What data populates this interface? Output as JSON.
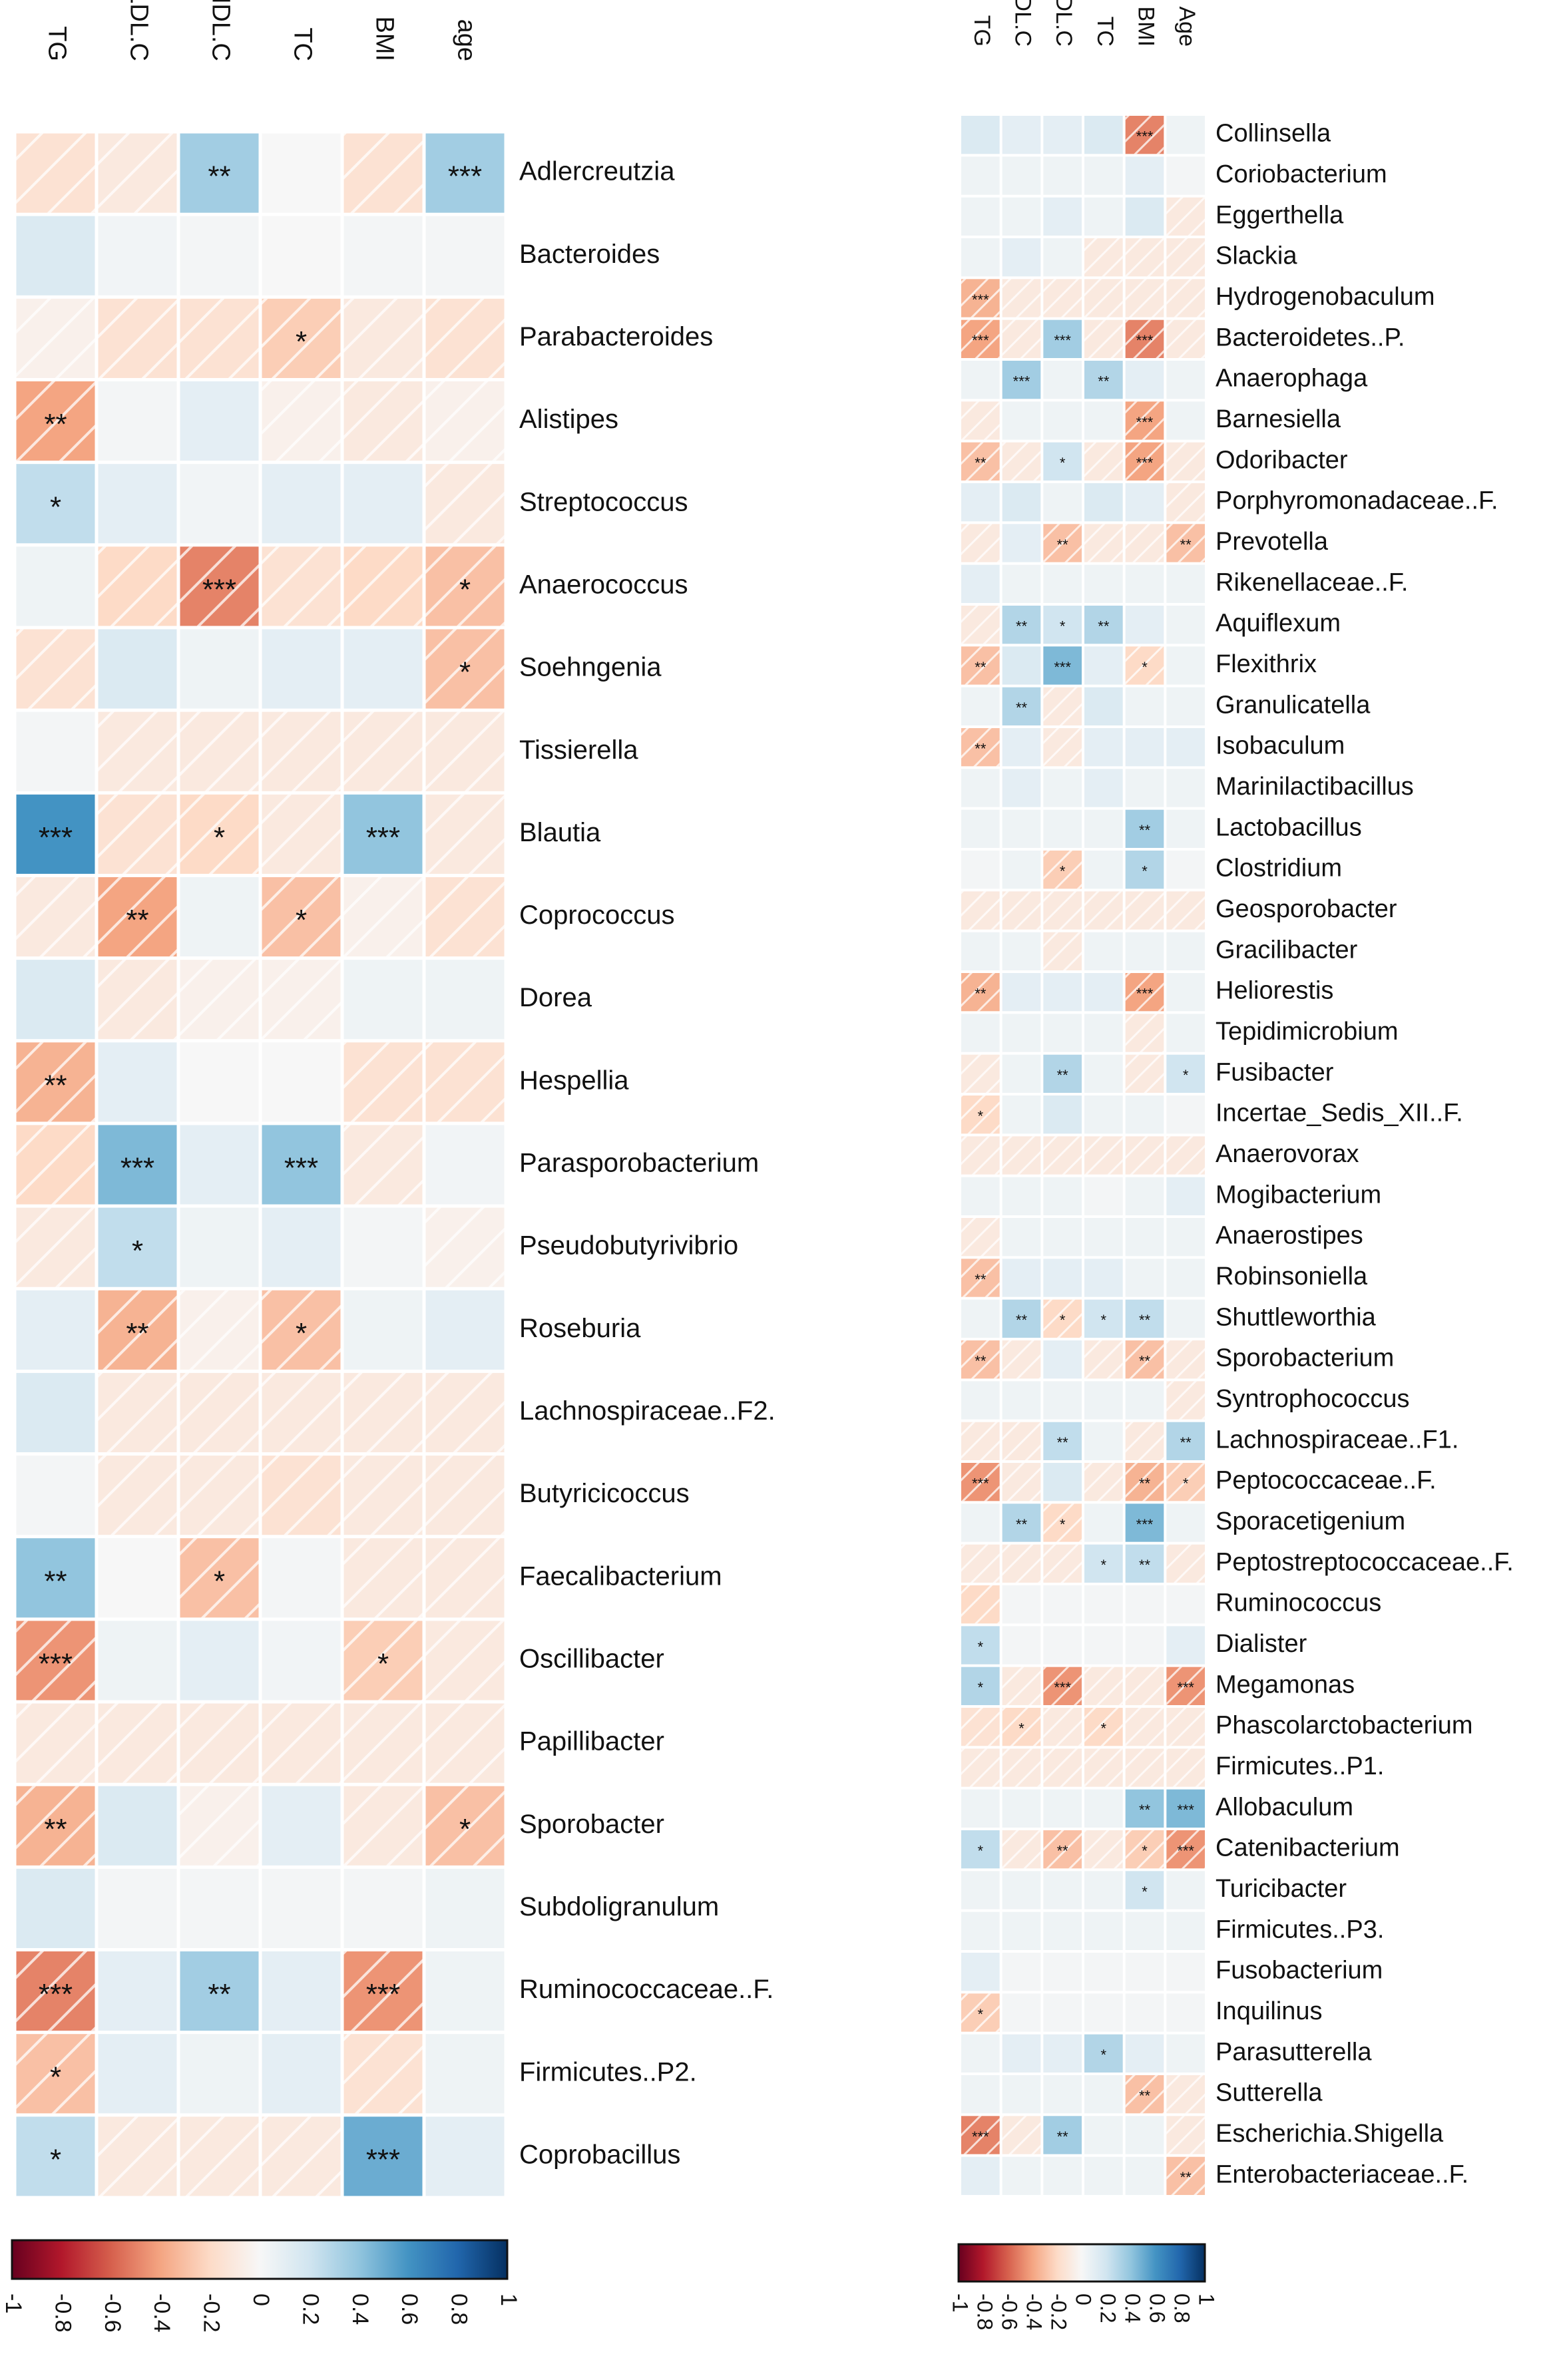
{
  "chart_data": [
    {
      "type": "heatmap",
      "columns": [
        "TG",
        "LDL.C",
        "HDL.C",
        "TC",
        "BMI",
        "age"
      ],
      "rows": [
        "Adlercreutzia",
        "Bacteroides",
        "Parabacteroides",
        "Alistipes",
        "Streptococcus",
        "Anaerococcus",
        "Soehngenia",
        "Tissierella",
        "Blautia",
        "Coprococcus",
        "Dorea",
        "Hespellia",
        "Parasporobacterium",
        "Pseudobutyrivibrio",
        "Roseburia",
        "Lachnospiraceae..F2.",
        "Butyricicoccus",
        "Faecalibacterium",
        "Oscillibacter",
        "Papillibacter",
        "Sporobacter",
        "Subdoligranulum",
        "Ruminococcaceae..F.",
        "Firmicutes..P2.",
        "Coprobacillus"
      ],
      "values": [
        [
          -0.15,
          -0.1,
          0.35,
          0,
          -0.15,
          0.35
        ],
        [
          0.15,
          0.03,
          0.02,
          0,
          0.02,
          0.02
        ],
        [
          -0.05,
          -0.15,
          -0.15,
          -0.25,
          -0.1,
          -0.15
        ],
        [
          -0.4,
          0.02,
          0.1,
          -0.05,
          -0.1,
          -0.05
        ],
        [
          0.25,
          0.1,
          0.03,
          0.1,
          0.1,
          -0.1
        ],
        [
          0.05,
          -0.2,
          -0.5,
          -0.15,
          -0.2,
          -0.3
        ],
        [
          -0.15,
          0.15,
          0.05,
          0.1,
          0.1,
          -0.3
        ],
        [
          0.02,
          -0.1,
          -0.1,
          -0.1,
          -0.1,
          -0.1
        ],
        [
          0.6,
          -0.15,
          -0.2,
          -0.1,
          0.4,
          -0.1
        ],
        [
          -0.1,
          -0.4,
          0.05,
          -0.3,
          -0.05,
          -0.15
        ],
        [
          0.15,
          -0.1,
          -0.05,
          -0.05,
          0.05,
          0.05
        ],
        [
          -0.35,
          0.1,
          0,
          0,
          -0.15,
          -0.15
        ],
        [
          -0.2,
          0.45,
          0.1,
          0.4,
          -0.1,
          0.03
        ],
        [
          -0.1,
          0.25,
          0.05,
          0.1,
          0.02,
          -0.05
        ],
        [
          0.1,
          -0.35,
          -0.05,
          -0.3,
          0.05,
          0.1
        ],
        [
          0.15,
          -0.1,
          -0.1,
          -0.1,
          -0.1,
          -0.1
        ],
        [
          0.02,
          -0.1,
          -0.1,
          -0.15,
          -0.1,
          -0.1
        ],
        [
          0.4,
          0,
          -0.3,
          0.02,
          -0.1,
          -0.1
        ],
        [
          -0.45,
          0.05,
          0.1,
          0.03,
          -0.25,
          -0.1
        ],
        [
          -0.1,
          -0.1,
          -0.1,
          -0.1,
          -0.1,
          -0.1
        ],
        [
          -0.35,
          0.15,
          -0.05,
          0.1,
          -0.1,
          -0.3
        ],
        [
          0.15,
          0.02,
          0.02,
          0.02,
          0.02,
          0.05
        ],
        [
          -0.5,
          0.1,
          0.35,
          0.1,
          -0.45,
          0.05
        ],
        [
          -0.3,
          0.1,
          0.05,
          0.1,
          -0.15,
          0.05
        ],
        [
          0.25,
          -0.1,
          -0.1,
          -0.1,
          0.5,
          0.1
        ]
      ],
      "stars": [
        [
          "",
          "",
          "**",
          "",
          "",
          "***"
        ],
        [
          "",
          "",
          "",
          "",
          "",
          ""
        ],
        [
          "",
          "",
          "",
          "*",
          "",
          ""
        ],
        [
          "**",
          "",
          "",
          "",
          "",
          ""
        ],
        [
          "*",
          "",
          "",
          "",
          "",
          ""
        ],
        [
          "",
          "",
          "***",
          "",
          "",
          "*"
        ],
        [
          "",
          "",
          "",
          "",
          "",
          "*"
        ],
        [
          "",
          "",
          "",
          "",
          "",
          ""
        ],
        [
          "***",
          "",
          "*",
          "",
          "***",
          ""
        ],
        [
          "",
          "**",
          "",
          "*",
          "",
          ""
        ],
        [
          "",
          "",
          "",
          "",
          "",
          ""
        ],
        [
          "**",
          "",
          "",
          "",
          "",
          ""
        ],
        [
          "",
          "***",
          "",
          "***",
          "",
          ""
        ],
        [
          "",
          "*",
          "",
          "",
          "",
          ""
        ],
        [
          "",
          "**",
          "",
          "*",
          "",
          ""
        ],
        [
          "",
          "",
          "",
          "",
          "",
          ""
        ],
        [
          "",
          "",
          "",
          "",
          "",
          ""
        ],
        [
          "**",
          "",
          "*",
          "",
          "",
          ""
        ],
        [
          "***",
          "",
          "",
          "",
          "*",
          ""
        ],
        [
          "",
          "",
          "",
          "",
          "",
          ""
        ],
        [
          "**",
          "",
          "",
          "",
          "",
          "*"
        ],
        [
          "",
          "",
          "",
          "",
          "",
          ""
        ],
        [
          "***",
          "",
          "**",
          "",
          "***",
          ""
        ],
        [
          "*",
          "",
          "",
          "",
          "",
          ""
        ],
        [
          "*",
          "",
          "",
          "",
          "***",
          ""
        ]
      ],
      "legend": {
        "ticks": [
          "-1",
          "-0.8",
          "-0.6",
          "-0.4",
          "-0.2",
          "0",
          "0.2",
          "0.4",
          "0.6",
          "0.8",
          "1"
        ],
        "range": [
          -1,
          1
        ]
      }
    },
    {
      "type": "heatmap",
      "columns": [
        "TG",
        "LDL.C",
        "HDL.C",
        "TC",
        "BMI",
        "Age"
      ],
      "rows": [
        "Collinsella",
        "Coriobacterium",
        "Eggerthella",
        "Slackia",
        "Hydrogenobaculum",
        "Bacteroidetes..P.",
        "Anaerophaga",
        "Barnesiella",
        "Odoribacter",
        "Porphyromonadaceae..F.",
        "Prevotella",
        "Rikenellaceae..F.",
        "Aquiflexum",
        "Flexithrix",
        "Granulicatella",
        "Isobaculum",
        "Marinilactibacillus",
        "Lactobacillus",
        "Clostridium",
        "Geosporobacter",
        "Gracilibacter",
        "Heliorestis",
        "Tepidimicrobium",
        "Fusibacter",
        "Incertae_Sedis_XII..F.",
        "Anaerovorax",
        "Mogibacterium",
        "Anaerostipes",
        "Robinsoniella",
        "Shuttleworthia",
        "Sporobacterium",
        "Syntrophococcus",
        "Lachnospiraceae..F1.",
        "Peptococcaceae..F.",
        "Sporacetigenium",
        "Peptostreptococcaceae..F.",
        "Ruminococcus",
        "Dialister",
        "Megamonas",
        "Phascolarctobacterium",
        "Firmicutes..P1.",
        "Allobaculum",
        "Catenibacterium",
        "Turicibacter",
        "Firmicutes..P3.",
        "Fusobacterium",
        "Inquilinus",
        "Parasutterella",
        "Sutterella",
        "Escherichia.Shigella",
        "Enterobacteriaceae..F."
      ],
      "values": [
        [
          0.15,
          0.1,
          0.1,
          0.15,
          -0.5,
          0.05
        ],
        [
          0.05,
          0.05,
          0.05,
          0.05,
          0.1,
          0.02
        ],
        [
          0.05,
          0.05,
          0.1,
          0.05,
          0.15,
          -0.1
        ],
        [
          0.05,
          0.1,
          0.05,
          -0.1,
          -0.1,
          -0.1
        ],
        [
          -0.35,
          -0.1,
          -0.1,
          -0.1,
          -0.1,
          -0.1
        ],
        [
          -0.4,
          -0.1,
          0.35,
          -0.1,
          -0.5,
          -0.1
        ],
        [
          0.05,
          0.35,
          0.05,
          0.3,
          0.1,
          0.05
        ],
        [
          -0.1,
          0.05,
          0.05,
          0.05,
          -0.4,
          0.05
        ],
        [
          -0.3,
          -0.1,
          0.2,
          -0.1,
          -0.4,
          -0.1
        ],
        [
          0.1,
          0.15,
          0.05,
          0.15,
          0.1,
          -0.1
        ],
        [
          -0.1,
          0.1,
          -0.3,
          -0.1,
          -0.1,
          -0.3
        ],
        [
          0.1,
          0.05,
          0.05,
          0.05,
          0.05,
          0.05
        ],
        [
          -0.1,
          0.3,
          0.2,
          0.3,
          0.1,
          0.05
        ],
        [
          -0.3,
          0.15,
          0.45,
          0.1,
          -0.2,
          0.05
        ],
        [
          0.05,
          0.3,
          -0.1,
          0.15,
          0.05,
          0.05
        ],
        [
          -0.3,
          0.1,
          -0.1,
          0.1,
          0.1,
          0.1
        ],
        [
          0.05,
          0.1,
          0.05,
          0.1,
          0.05,
          0.05
        ],
        [
          0.05,
          0.05,
          0.05,
          0.05,
          0.35,
          0.05
        ],
        [
          0.02,
          0.05,
          -0.25,
          0.05,
          0.3,
          0.02
        ],
        [
          -0.1,
          -0.1,
          -0.1,
          -0.1,
          -0.1,
          -0.1
        ],
        [
          0.05,
          0.05,
          -0.1,
          0.05,
          0.05,
          0.05
        ],
        [
          -0.35,
          0.1,
          0.1,
          0.1,
          -0.4,
          0.05
        ],
        [
          0.05,
          0.05,
          0.05,
          0.05,
          -0.1,
          0.05
        ],
        [
          -0.1,
          0.05,
          0.3,
          0.05,
          -0.1,
          0.2
        ],
        [
          -0.2,
          0.05,
          0.15,
          0.05,
          0.05,
          0.02
        ],
        [
          -0.1,
          -0.1,
          -0.1,
          -0.1,
          -0.1,
          -0.1
        ],
        [
          0.05,
          0.05,
          0.05,
          0.02,
          0.05,
          0.1
        ],
        [
          -0.1,
          0.05,
          0.05,
          0.05,
          0.05,
          0.05
        ],
        [
          -0.3,
          0.1,
          0.1,
          0.1,
          0.05,
          0.05
        ],
        [
          0.05,
          0.3,
          -0.2,
          0.2,
          0.25,
          0.05
        ],
        [
          -0.3,
          -0.1,
          0.1,
          -0.1,
          -0.3,
          -0.1
        ],
        [
          0.05,
          0.05,
          0.05,
          0.05,
          0.05,
          -0.1
        ],
        [
          -0.1,
          -0.1,
          0.25,
          0.05,
          -0.1,
          0.3
        ],
        [
          -0.45,
          -0.1,
          0.15,
          -0.1,
          -0.35,
          -0.25
        ],
        [
          0.05,
          0.3,
          -0.2,
          0.05,
          0.45,
          0.05
        ],
        [
          -0.1,
          -0.1,
          -0.1,
          0.2,
          0.25,
          -0.1
        ],
        [
          -0.2,
          0.02,
          0.02,
          0.02,
          0.02,
          0.02
        ],
        [
          0.25,
          0.02,
          0.02,
          0.02,
          0.02,
          0.1
        ],
        [
          0.3,
          -0.1,
          -0.45,
          -0.1,
          -0.1,
          -0.45
        ],
        [
          -0.15,
          -0.2,
          -0.1,
          -0.2,
          -0.1,
          -0.1
        ],
        [
          -0.1,
          -0.1,
          -0.1,
          -0.1,
          -0.1,
          -0.1
        ],
        [
          0.05,
          0.05,
          0.05,
          0.05,
          0.4,
          0.45
        ],
        [
          0.25,
          -0.1,
          -0.3,
          -0.1,
          -0.25,
          -0.45
        ],
        [
          0.05,
          0.05,
          0.05,
          0.05,
          0.2,
          0.05
        ],
        [
          0.05,
          0.05,
          0.05,
          0.05,
          0.05,
          0.05
        ],
        [
          0.1,
          0.02,
          0.02,
          0.02,
          0.02,
          0.02
        ],
        [
          -0.25,
          0.02,
          0.02,
          0.02,
          0.02,
          0.02
        ],
        [
          0.05,
          0.1,
          0.1,
          0.3,
          0.1,
          0.05
        ],
        [
          0.05,
          0.05,
          0.05,
          0.05,
          -0.3,
          -0.1
        ],
        [
          -0.5,
          -0.1,
          0.35,
          0.05,
          0.05,
          -0.1
        ],
        [
          0.1,
          0.05,
          0.05,
          0.05,
          0.05,
          -0.3
        ]
      ],
      "stars": [
        [
          "",
          "",
          "",
          "",
          "***",
          ""
        ],
        [
          "",
          "",
          "",
          "",
          "",
          ""
        ],
        [
          "",
          "",
          "",
          "",
          "",
          ""
        ],
        [
          "",
          "",
          "",
          "",
          "",
          ""
        ],
        [
          "***",
          "",
          "",
          "",
          "",
          ""
        ],
        [
          "***",
          "",
          "***",
          "",
          "***",
          ""
        ],
        [
          "",
          "***",
          "",
          "**",
          "",
          ""
        ],
        [
          "",
          "",
          "",
          "",
          "***",
          ""
        ],
        [
          "**",
          "",
          "*",
          "",
          "***",
          ""
        ],
        [
          "",
          "",
          "",
          "",
          "",
          ""
        ],
        [
          "",
          "",
          "**",
          "",
          "",
          "**"
        ],
        [
          "",
          "",
          "",
          "",
          "",
          ""
        ],
        [
          "",
          "**",
          "*",
          "**",
          "",
          ""
        ],
        [
          "**",
          "",
          "***",
          "",
          "*",
          ""
        ],
        [
          "",
          "**",
          "",
          "",
          "",
          ""
        ],
        [
          "**",
          "",
          "",
          "",
          "",
          ""
        ],
        [
          "",
          "",
          "",
          "",
          "",
          ""
        ],
        [
          "",
          "",
          "",
          "",
          "**",
          ""
        ],
        [
          "",
          "",
          "*",
          "",
          "*",
          ""
        ],
        [
          "",
          "",
          "",
          "",
          "",
          ""
        ],
        [
          "",
          "",
          "",
          "",
          "",
          ""
        ],
        [
          "**",
          "",
          "",
          "",
          "***",
          ""
        ],
        [
          "",
          "",
          "",
          "",
          "",
          ""
        ],
        [
          "",
          "",
          "**",
          "",
          "",
          "*"
        ],
        [
          "*",
          "",
          "",
          "",
          "",
          ""
        ],
        [
          "",
          "",
          "",
          "",
          "",
          ""
        ],
        [
          "",
          "",
          "",
          "",
          "",
          ""
        ],
        [
          "",
          "",
          "",
          "",
          "",
          ""
        ],
        [
          "**",
          "",
          "",
          "",
          "",
          ""
        ],
        [
          "",
          "**",
          "*",
          "*",
          "**",
          ""
        ],
        [
          "**",
          "",
          "",
          "",
          "**",
          ""
        ],
        [
          "",
          "",
          "",
          "",
          "",
          ""
        ],
        [
          "",
          "",
          "**",
          "",
          "",
          "**"
        ],
        [
          "***",
          "",
          "",
          "",
          "**",
          "*"
        ],
        [
          "",
          "**",
          "*",
          "",
          "***",
          ""
        ],
        [
          "",
          "",
          "",
          "*",
          "**",
          ""
        ],
        [
          "",
          "",
          "",
          "",
          "",
          ""
        ],
        [
          "*",
          "",
          "",
          "",
          "",
          ""
        ],
        [
          "*",
          "",
          "***",
          "",
          "",
          "***"
        ],
        [
          "",
          "*",
          "",
          "*",
          "",
          ""
        ],
        [
          "",
          "",
          "",
          "",
          "",
          ""
        ],
        [
          "",
          "",
          "",
          "",
          "**",
          "***"
        ],
        [
          "*",
          "",
          "**",
          "",
          "*",
          "***"
        ],
        [
          "",
          "",
          "",
          "",
          "*",
          ""
        ],
        [
          "",
          "",
          "",
          "",
          "",
          ""
        ],
        [
          "",
          "",
          "",
          "",
          "",
          ""
        ],
        [
          "*",
          "",
          "",
          "",
          "",
          ""
        ],
        [
          "",
          "",
          "",
          "*",
          "",
          ""
        ],
        [
          "",
          "",
          "",
          "",
          "**",
          ""
        ],
        [
          "***",
          "",
          "**",
          "",
          "",
          ""
        ],
        [
          "",
          "",
          "",
          "",
          "",
          "**"
        ]
      ],
      "legend": {
        "ticks": [
          "-1",
          "-0.8",
          "-0.6",
          "-0.4",
          "-0.2",
          "0",
          "0.2",
          "0.4",
          "0.6",
          "0.8",
          "1"
        ],
        "range": [
          -1,
          1
        ]
      }
    }
  ]
}
